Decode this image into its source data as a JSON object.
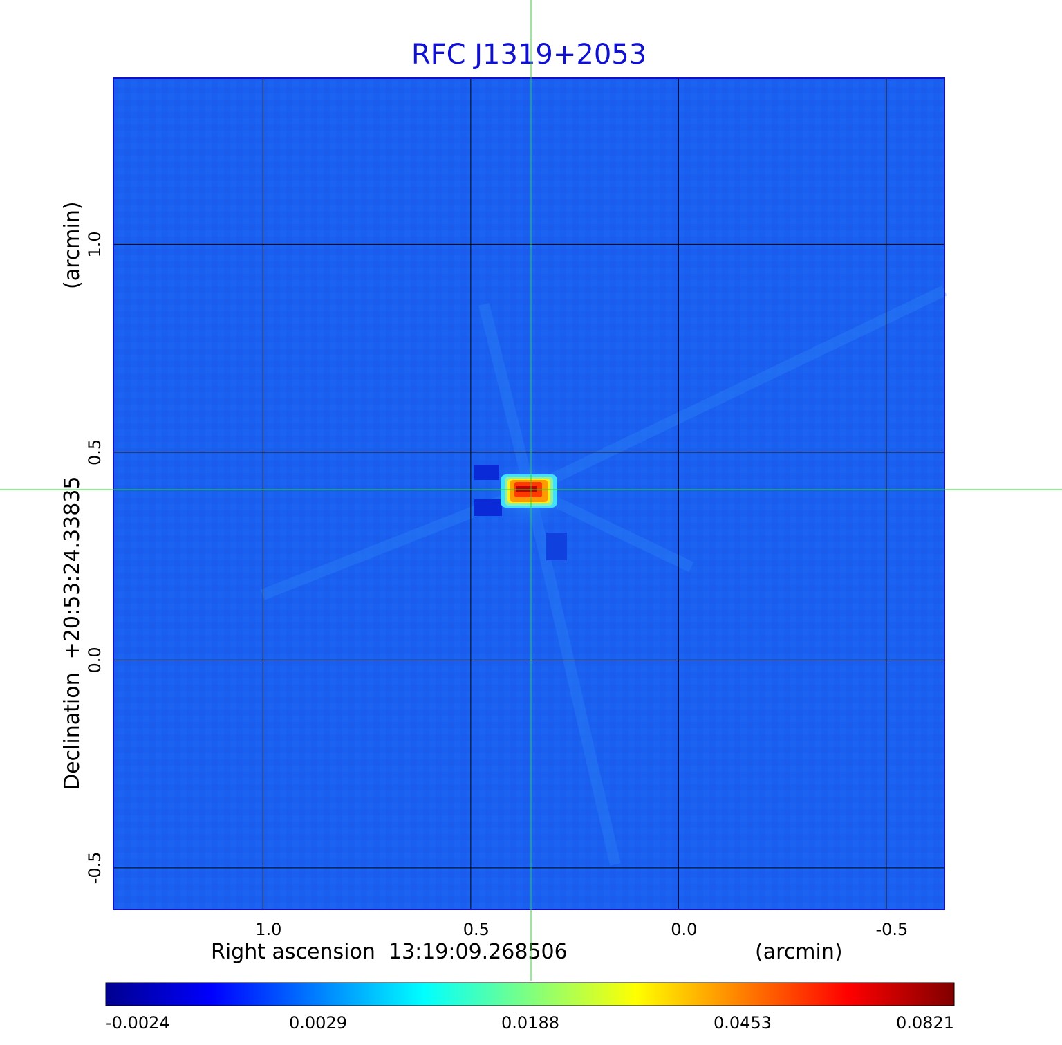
{
  "chart_data": {
    "type": "heatmap",
    "title": "RFC J1319+2053",
    "xlabel": "Right ascension  13:19:09.268506",
    "xunit": "(arcmin)",
    "ylabel": "Declination  +20:53:24.33835",
    "yunit": "(arcmin)",
    "xlim": [
      1.36,
      -0.64
    ],
    "ylim": [
      -0.6,
      1.4
    ],
    "x_ticks": [
      1.0,
      0.5,
      0.0,
      -0.5
    ],
    "x_tick_labels": [
      "1.0",
      "0.5",
      "0.0",
      "-0.5"
    ],
    "y_ticks": [
      1.0,
      0.5,
      0.0,
      -0.5
    ],
    "y_tick_labels": [
      "1.0",
      "0.5",
      "0.0",
      "-0.5"
    ],
    "grid": true,
    "crosshair": {
      "x": 0.355,
      "y": 0.41,
      "color": "#22dd22"
    },
    "source_peak": {
      "x": 0.355,
      "y": 0.41,
      "value": 0.0821
    },
    "colorbar": {
      "colormap": "jet",
      "tick_labels": [
        "-0.0024",
        "0.0029",
        "0.0188",
        "0.0453",
        "0.0821"
      ],
      "tick_values": [
        -0.0024,
        0.0029,
        0.0188,
        0.0453,
        0.0821
      ]
    },
    "background_color": "#1a5ef0"
  }
}
